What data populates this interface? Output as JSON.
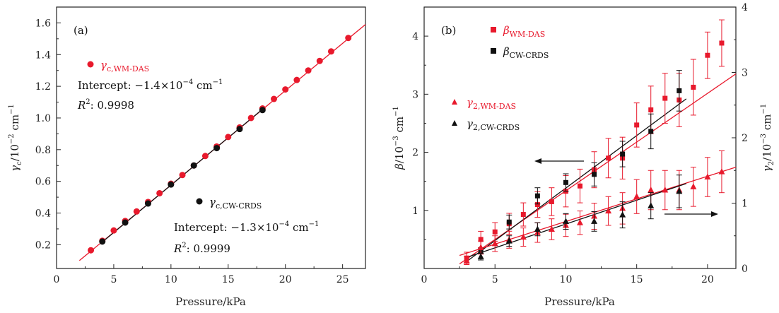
{
  "chart_data": [
    {
      "panel_label": "(a)",
      "type": "scatter",
      "xlabel": "Pressure/kPa",
      "ylabel": "γc/10−2 cm−1",
      "xlim": [
        0,
        27
      ],
      "ylim": [
        0.05,
        1.7
      ],
      "xticks": [
        "0",
        "5",
        "10",
        "15",
        "20",
        "25"
      ],
      "yticks": [
        "0.2",
        "0.4",
        "0.6",
        "0.8",
        "1.0",
        "1.2",
        "1.4",
        "1.6"
      ],
      "series": [
        {
          "name": "γc,WM-DAS",
          "color": "#e8192c",
          "marker": "circle",
          "x": [
            3,
            4,
            5,
            6,
            7,
            8,
            9,
            10,
            11,
            12,
            13,
            14,
            15,
            16,
            17,
            18,
            19,
            20,
            21,
            22,
            23,
            24,
            25.5
          ],
          "y": [
            0.165,
            0.225,
            0.29,
            0.35,
            0.41,
            0.47,
            0.525,
            0.585,
            0.64,
            0.7,
            0.76,
            0.82,
            0.88,
            0.94,
            1.0,
            1.06,
            1.12,
            1.18,
            1.24,
            1.3,
            1.36,
            1.42,
            1.505
          ]
        },
        {
          "name": "γc,CW-CRDS",
          "color": "#111111",
          "marker": "circle",
          "x": [
            4,
            6,
            8,
            10,
            12,
            14,
            16,
            18
          ],
          "y": [
            0.22,
            0.34,
            0.46,
            0.58,
            0.7,
            0.81,
            0.93,
            1.05
          ]
        }
      ],
      "fits": [
        {
          "series": "γc,WM-DAS",
          "color": "#e8192c",
          "x": [
            2,
            27
          ],
          "y": [
            0.1,
            1.59
          ]
        },
        {
          "series": "γc,CW-CRDS",
          "color": "#111111",
          "x": [
            4,
            18
          ],
          "y": [
            0.217,
            1.055
          ]
        }
      ],
      "annotations": {
        "wm_intercept": "Intercept: −1.4×10−4 cm−1",
        "wm_r2_label": "R2: 0.9998",
        "cw_intercept": "Intercept: −1.3×10−4 cm−1",
        "cw_r2_label": "R2: 0.9999"
      }
    },
    {
      "panel_label": "(b)",
      "type": "scatter",
      "xlabel": "Pressure/kPa",
      "ylabel_left": "β/10−3 cm−1",
      "ylabel_right": "γ2/10−3 cm−1",
      "xlim": [
        0,
        22
      ],
      "ylim_left": [
        0,
        4.5
      ],
      "ylim_right": [
        0,
        4
      ],
      "xticks": [
        "0",
        "5",
        "10",
        "15",
        "20"
      ],
      "yticks_left": [
        "1",
        "2",
        "3",
        "4"
      ],
      "yticks_right": [
        "0",
        "1",
        "2",
        "3",
        "4"
      ],
      "series": [
        {
          "name": "βWM-DAS",
          "axis": "left",
          "color": "#e8192c",
          "marker": "square",
          "x": [
            3,
            4,
            5,
            6,
            7,
            8,
            9,
            10,
            11,
            12,
            13,
            14,
            15,
            16,
            17,
            18,
            19,
            20,
            21
          ],
          "y": [
            0.18,
            0.5,
            0.63,
            0.77,
            0.93,
            1.1,
            1.15,
            1.33,
            1.42,
            1.7,
            1.9,
            1.9,
            2.47,
            2.73,
            2.93,
            2.9,
            3.12,
            3.67,
            3.88
          ],
          "err": [
            0.1,
            0.14,
            0.16,
            0.18,
            0.2,
            0.22,
            0.24,
            0.27,
            0.29,
            0.31,
            0.34,
            0.36,
            0.38,
            0.41,
            0.43,
            0.46,
            0.48,
            0.4,
            0.4
          ]
        },
        {
          "name": "βCW-CRDS",
          "axis": "left",
          "color": "#111111",
          "marker": "square",
          "x": [
            4,
            6,
            8,
            10,
            12,
            14,
            16,
            18
          ],
          "y": [
            0.3,
            0.8,
            1.25,
            1.48,
            1.62,
            1.97,
            2.36,
            3.06
          ],
          "err": [
            0.05,
            0.12,
            0.14,
            0.15,
            0.2,
            0.22,
            0.3,
            0.35
          ]
        },
        {
          "name": "γ2,WM-DAS",
          "axis": "right",
          "color": "#e8192c",
          "marker": "triangle",
          "x": [
            3,
            4,
            5,
            6,
            7,
            8,
            9,
            10,
            11,
            12,
            13,
            14,
            15,
            16,
            17,
            18,
            19,
            20,
            21
          ],
          "y": [
            0.12,
            0.32,
            0.38,
            0.44,
            0.48,
            0.55,
            0.6,
            0.66,
            0.7,
            0.8,
            0.88,
            0.92,
            1.1,
            1.2,
            1.2,
            1.2,
            1.25,
            1.4,
            1.48
          ],
          "err": [
            0.06,
            0.1,
            0.12,
            0.13,
            0.14,
            0.15,
            0.16,
            0.17,
            0.18,
            0.2,
            0.22,
            0.24,
            0.26,
            0.3,
            0.3,
            0.3,
            0.3,
            0.3,
            0.32
          ]
        },
        {
          "name": "γ2,CW-CRDS",
          "axis": "right",
          "color": "#111111",
          "marker": "triangle",
          "x": [
            4,
            6,
            8,
            10,
            12,
            14,
            16,
            18
          ],
          "y": [
            0.18,
            0.42,
            0.6,
            0.72,
            0.72,
            0.82,
            0.96,
            1.18
          ],
          "err": [
            0.05,
            0.08,
            0.1,
            0.12,
            0.15,
            0.2,
            0.2,
            0.25
          ]
        }
      ],
      "fits": [
        {
          "series": "βWM-DAS",
          "axis": "left",
          "color": "#e8192c",
          "x": [
            2.5,
            22
          ],
          "y": [
            0.08,
            3.35
          ]
        },
        {
          "series": "βCW-CRDS",
          "axis": "left",
          "color": "#111111",
          "x": [
            3,
            18.5
          ],
          "y": [
            0.12,
            2.92
          ]
        },
        {
          "series": "γ2,WM-DAS",
          "axis": "right",
          "color": "#e8192c",
          "x": [
            2.5,
            22
          ],
          "y": [
            0.2,
            1.55
          ]
        },
        {
          "series": "γ2,CW-CRDS",
          "axis": "right",
          "color": "#111111",
          "x": [
            3,
            18.5
          ],
          "y": [
            0.17,
            1.3
          ]
        }
      ],
      "arrows": [
        {
          "direction": "left",
          "points_to_axis": "left"
        },
        {
          "direction": "right",
          "points_to_axis": "right"
        }
      ]
    }
  ]
}
